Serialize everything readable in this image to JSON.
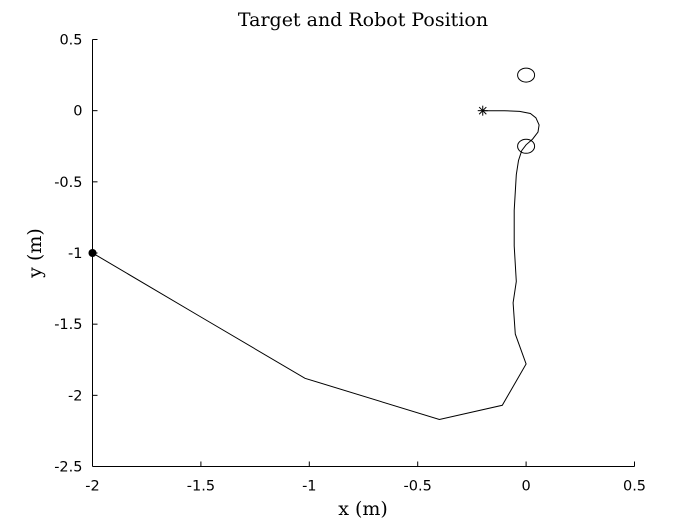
{
  "chart_data": {
    "type": "line",
    "title": "Target and Robot Position",
    "xlabel": "x (m)",
    "ylabel": "y (m)",
    "xlim": [
      -2,
      0.5
    ],
    "ylim": [
      -2.5,
      0.5
    ],
    "xticks": [
      -2,
      -1.5,
      -1,
      -0.5,
      0,
      0.5
    ],
    "xtick_labels": [
      "-2",
      "-1.5",
      "-1",
      "-0.5",
      "0",
      "0.5"
    ],
    "yticks": [
      0.5,
      0,
      -0.5,
      -1,
      -1.5,
      -2,
      -2.5
    ],
    "ytick_labels": [
      "0.5",
      "0",
      "-0.5",
      "-1",
      "-1.5",
      "-2",
      "-2.5"
    ],
    "grid": false,
    "box": false,
    "colors": {
      "line": "#000000",
      "axes": "#000000",
      "background": "#ffffff"
    },
    "series": [
      {
        "marker": "none",
        "x": [
          -2.0,
          -1.5,
          -1.02,
          -0.4,
          -0.11,
          0.0,
          -0.05,
          -0.06,
          -0.045,
          -0.055,
          -0.055,
          -0.045,
          -0.035,
          -0.02,
          0.0,
          0.03,
          0.055,
          0.06,
          0.045,
          0.02,
          -0.03,
          -0.1,
          -0.2
        ],
        "y": [
          -1.0,
          -1.45,
          -1.88,
          -2.17,
          -2.07,
          -1.78,
          -1.57,
          -1.35,
          -1.2,
          -0.95,
          -0.7,
          -0.45,
          -0.35,
          -0.28,
          -0.24,
          -0.2,
          -0.15,
          -0.1,
          -0.05,
          -0.02,
          -0.005,
          0.0,
          0.0
        ]
      },
      {
        "marker": "filled-circle",
        "x": [
          -2.0
        ],
        "y": [
          -1.0
        ]
      },
      {
        "marker": "asterisk",
        "x": [
          -0.2
        ],
        "y": [
          0.0
        ]
      },
      {
        "marker": "open-circle",
        "x": [
          0.0,
          0.0
        ],
        "y": [
          0.25,
          -0.25
        ]
      }
    ]
  }
}
